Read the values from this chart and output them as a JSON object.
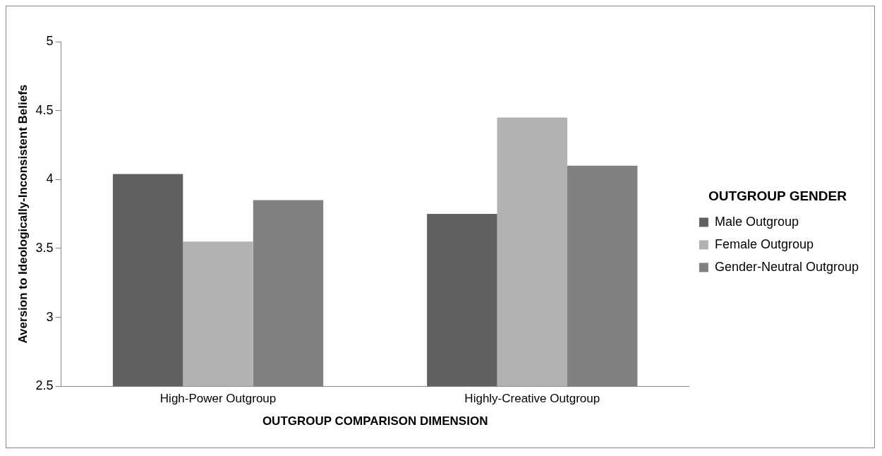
{
  "chart_data": {
    "type": "bar",
    "xlabel": "OUTGROUP COMPARISON DIMENSION",
    "ylabel": "Aversion to Ideologically-Inconsistent Beliefs",
    "legend_title": "OUTGROUP GENDER",
    "categories": [
      "High-Power Outgroup",
      "Highly-Creative Outgroup"
    ],
    "series": [
      {
        "name": "Male Outgroup",
        "color": "#606060",
        "values": [
          4.04,
          3.75
        ]
      },
      {
        "name": "Female Outgroup",
        "color": "#b2b2b2",
        "values": [
          3.55,
          4.45
        ]
      },
      {
        "name": "Gender-Neutral Outgroup",
        "color": "#808080",
        "values": [
          3.85,
          4.1
        ]
      }
    ],
    "ylim": [
      2.5,
      5
    ],
    "yticks": [
      2.5,
      3,
      3.5,
      4,
      4.5,
      5
    ],
    "grid": false,
    "legend": "right"
  }
}
